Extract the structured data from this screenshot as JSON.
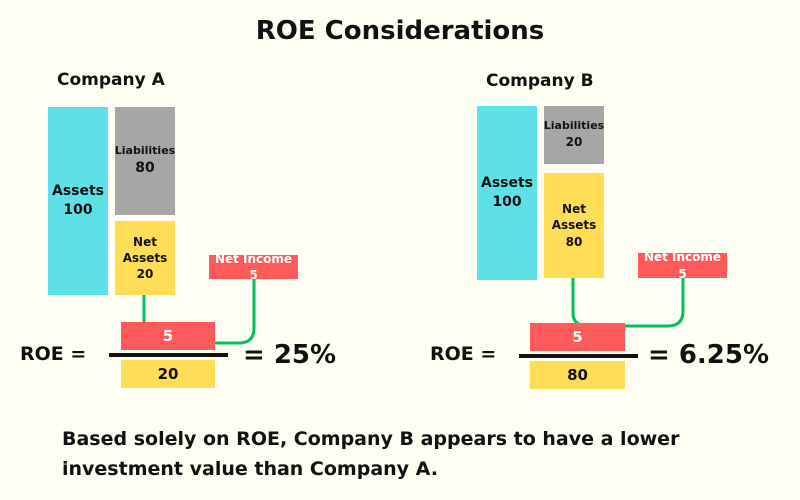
{
  "title": "ROE Considerations",
  "colors": {
    "background": "#fffef2",
    "assets": "#5ee1e6",
    "liabilities": "#a6a6a6",
    "net_assets": "#ffdd57",
    "net_income": "#ff5a5a",
    "connector": "#00c060"
  },
  "company_a": {
    "name": "Company A",
    "assets_label": "Assets",
    "assets_value": "100",
    "liabilities_label": "Liabilities",
    "liabilities_value": "80",
    "net_assets_label1": "Net",
    "net_assets_label2": "Assets",
    "net_assets_value": "20",
    "net_income": "Net Income 5",
    "roe_label": "ROE  =",
    "numerator": "5",
    "denominator": "20",
    "result": "= 25%"
  },
  "company_b": {
    "name": "Company B",
    "assets_label": "Assets",
    "assets_value": "100",
    "liabilities_label": "Liabilities",
    "liabilities_value": "20",
    "net_assets_label1": "Net",
    "net_assets_label2": "Assets",
    "net_assets_value": "80",
    "net_income": "Net Income 5",
    "roe_label": "ROE  =",
    "numerator": "5",
    "denominator": "80",
    "result": "= 6.25%"
  },
  "conclusion": {
    "line1": "Based solely on ROE, Company B appears to have a lower",
    "line2": "investment value than Company A."
  }
}
